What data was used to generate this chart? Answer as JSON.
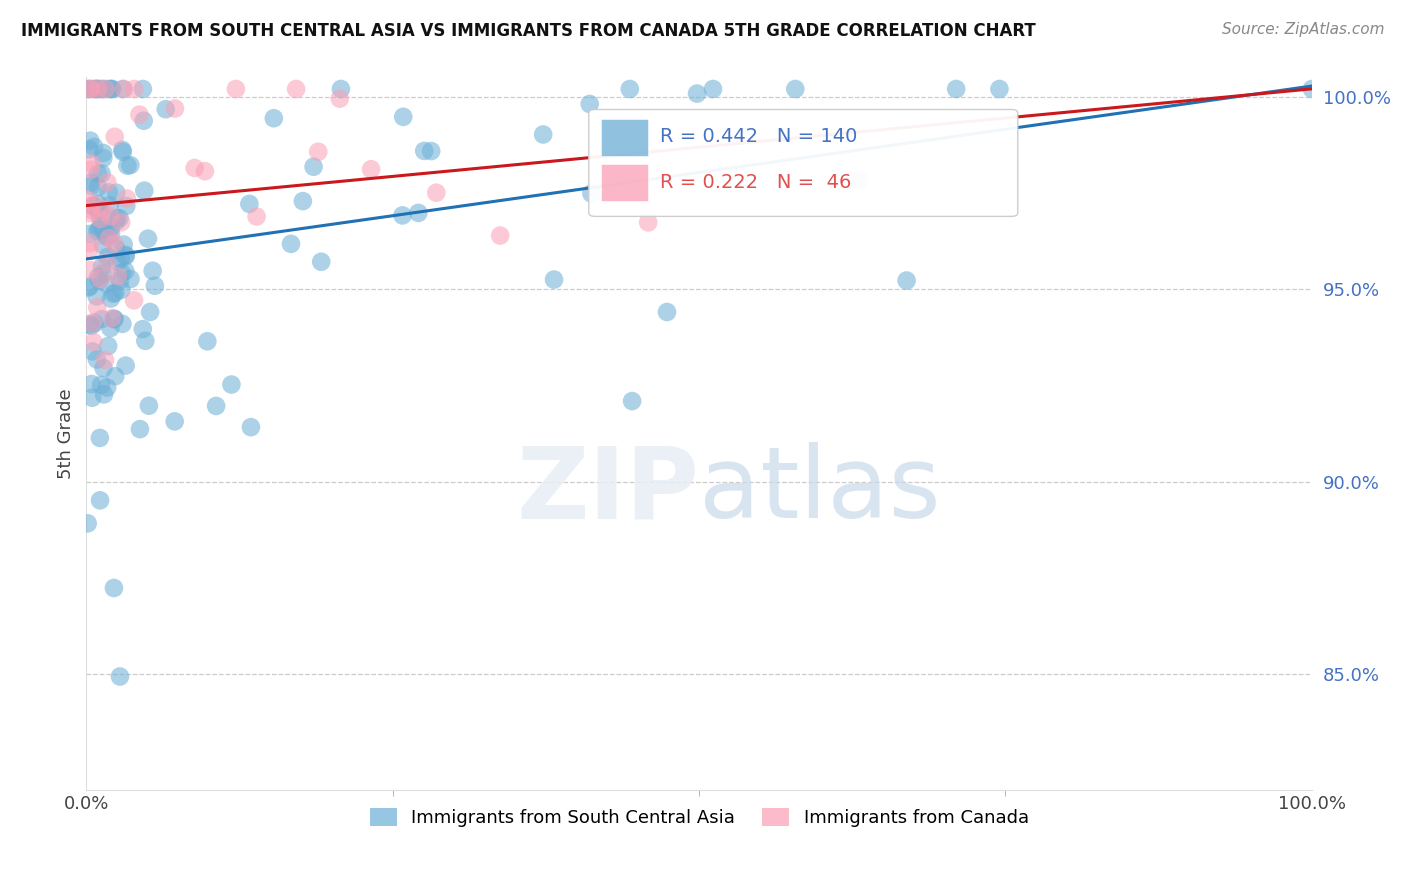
{
  "title": "IMMIGRANTS FROM SOUTH CENTRAL ASIA VS IMMIGRANTS FROM CANADA 5TH GRADE CORRELATION CHART",
  "source": "Source: ZipAtlas.com",
  "ylabel": "5th Grade",
  "xlim": [
    0.0,
    1.0
  ],
  "ylim": [
    0.82,
    1.005
  ],
  "ytick_values": [
    0.85,
    0.9,
    0.95,
    1.0
  ],
  "legend1_label": "Immigrants from South Central Asia",
  "legend2_label": "Immigrants from Canada",
  "blue_color": "#6baed6",
  "pink_color": "#fa9fb5",
  "blue_line_color": "#2171b5",
  "pink_line_color": "#cb181d",
  "R_blue": 0.442,
  "N_blue": 140,
  "R_pink": 0.222,
  "N_pink": 46,
  "blue_seed": 123,
  "pink_seed": 456
}
